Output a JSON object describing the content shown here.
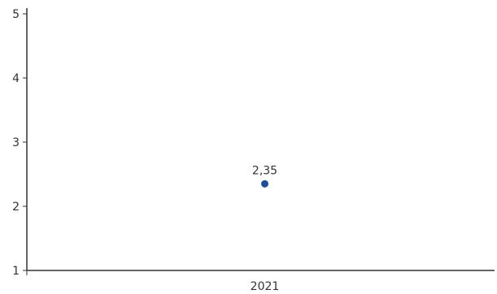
{
  "chart_data": {
    "type": "scatter",
    "title": "",
    "xlabel": "",
    "ylabel": "",
    "categories": [
      "2021"
    ],
    "series": [
      {
        "values": [
          2.35
        ],
        "labels": [
          "2,35"
        ],
        "color": "#1f4e96"
      }
    ],
    "ylim": [
      1,
      5
    ],
    "yticks": [
      "1",
      "2",
      "3",
      "4",
      "5"
    ],
    "grid": false,
    "legend": "none"
  }
}
